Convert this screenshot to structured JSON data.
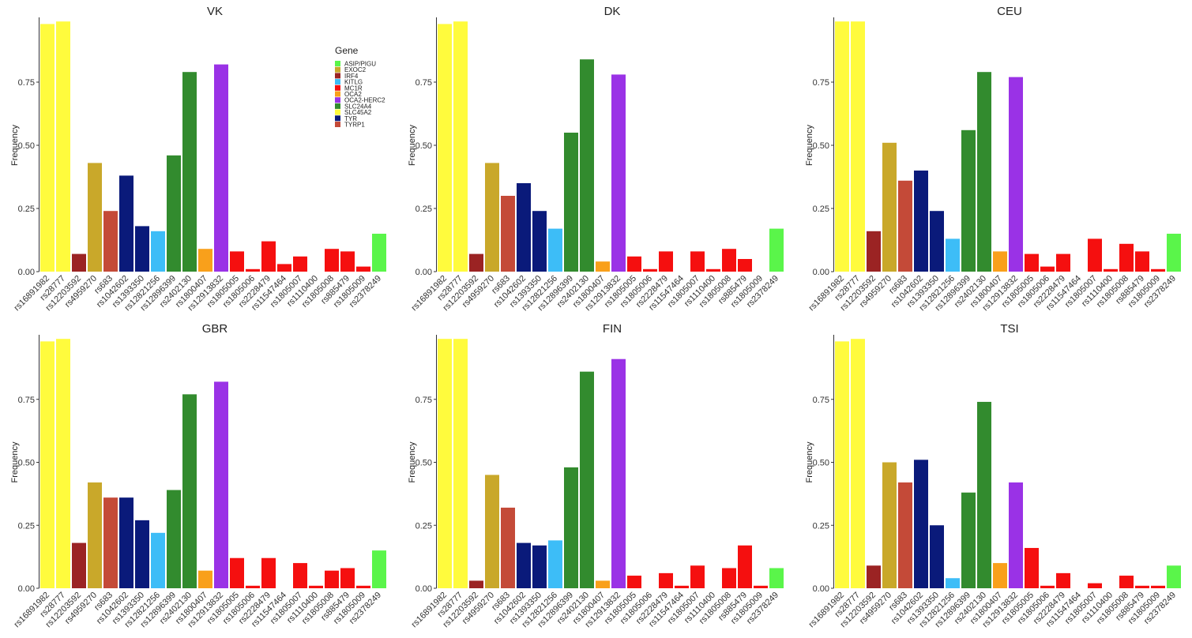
{
  "chart_data": [
    {
      "type": "bar",
      "title": "VK",
      "ylabel": "Frequency",
      "categories": [
        "rs16891982",
        "rs28777",
        "rs12203592",
        "rs4959270",
        "rs683",
        "rs1042602",
        "rs1393350",
        "rs12821256",
        "rs12896399",
        "rs2402130",
        "rs1800407",
        "rs12913832",
        "rs1805005",
        "rs1805006",
        "rs2228479",
        "rs11547464",
        "rs1805007",
        "rs1110400",
        "rs1805008",
        "rs885479",
        "rs1805009",
        "rs2378249"
      ],
      "values": [
        0.98,
        0.99,
        0.07,
        0.43,
        0.24,
        0.38,
        0.18,
        0.16,
        0.46,
        0.79,
        0.09,
        0.82,
        0.08,
        0.01,
        0.12,
        0.03,
        0.06,
        0,
        0.09,
        0.08,
        0.02,
        0.15
      ],
      "ylim": [
        0,
        1
      ],
      "yticks": [
        "0.00",
        "0.25",
        "0.50",
        "0.75"
      ]
    },
    {
      "type": "bar",
      "title": "DK",
      "ylabel": "Frequency",
      "categories": [
        "rs16891982",
        "rs28777",
        "rs12203592",
        "rs4959270",
        "rs683",
        "rs1042602",
        "rs1393350",
        "rs12821256",
        "rs12896399",
        "rs2402130",
        "rs1800407",
        "rs12913832",
        "rs1805005",
        "rs1805006",
        "rs2228479",
        "rs11547464",
        "rs1805007",
        "rs1110400",
        "rs1805008",
        "rs885479",
        "rs1805009",
        "rs2378249"
      ],
      "values": [
        0.98,
        0.99,
        0.07,
        0.43,
        0.3,
        0.35,
        0.24,
        0.17,
        0.55,
        0.84,
        0.04,
        0.78,
        0.06,
        0.01,
        0.08,
        0,
        0.08,
        0.01,
        0.09,
        0.05,
        0,
        0.17
      ],
      "ylim": [
        0,
        1
      ],
      "yticks": [
        "0.00",
        "0.25",
        "0.50",
        "0.75"
      ]
    },
    {
      "type": "bar",
      "title": "CEU",
      "ylabel": "Frequency",
      "categories": [
        "rs16891982",
        "rs28777",
        "rs12203592",
        "rs4959270",
        "rs683",
        "rs1042602",
        "rs1393350",
        "rs12821256",
        "rs12896399",
        "rs2402130",
        "rs1800407",
        "rs12913832",
        "rs1805005",
        "rs1805006",
        "rs2228479",
        "rs11547464",
        "rs1805007",
        "rs1110400",
        "rs1805008",
        "rs885479",
        "rs1805009",
        "rs2378249"
      ],
      "values": [
        0.99,
        0.99,
        0.16,
        0.51,
        0.36,
        0.4,
        0.24,
        0.13,
        0.56,
        0.79,
        0.08,
        0.77,
        0.07,
        0.02,
        0.07,
        0,
        0.13,
        0.01,
        0.11,
        0.08,
        0.01,
        0.15
      ],
      "ylim": [
        0,
        1
      ],
      "yticks": [
        "0.00",
        "0.25",
        "0.50",
        "0.75"
      ]
    },
    {
      "type": "bar",
      "title": "GBR",
      "ylabel": "Frequency",
      "categories": [
        "rs16891982",
        "rs28777",
        "rs12203592",
        "rs4959270",
        "rs683",
        "rs1042602",
        "rs1393350",
        "rs12821256",
        "rs12896399",
        "rs2402130",
        "rs1800407",
        "rs12913832",
        "rs1805005",
        "rs1805006",
        "rs2228479",
        "rs11547464",
        "rs1805007",
        "rs1110400",
        "rs1805008",
        "rs885479",
        "rs1805009",
        "rs2378249"
      ],
      "values": [
        0.98,
        0.99,
        0.18,
        0.42,
        0.36,
        0.36,
        0.27,
        0.22,
        0.39,
        0.77,
        0.07,
        0.82,
        0.12,
        0.01,
        0.12,
        0,
        0.1,
        0.01,
        0.07,
        0.08,
        0.01,
        0.15
      ],
      "ylim": [
        0,
        1
      ],
      "yticks": [
        "0.00",
        "0.25",
        "0.50",
        "0.75"
      ]
    },
    {
      "type": "bar",
      "title": "FIN",
      "ylabel": "Frequency",
      "categories": [
        "rs16891982",
        "rs28777",
        "rs12203592",
        "rs4959270",
        "rs683",
        "rs1042602",
        "rs1393350",
        "rs12821256",
        "rs12896399",
        "rs2402130",
        "rs1800407",
        "rs12913832",
        "rs1805005",
        "rs1805006",
        "rs2228479",
        "rs11547464",
        "rs1805007",
        "rs1110400",
        "rs1805008",
        "rs885479",
        "rs1805009",
        "rs2378249"
      ],
      "values": [
        0.99,
        0.99,
        0.03,
        0.45,
        0.32,
        0.18,
        0.17,
        0.19,
        0.48,
        0.86,
        0.03,
        0.91,
        0.05,
        0,
        0.06,
        0.01,
        0.09,
        0,
        0.08,
        0.17,
        0.01,
        0.08
      ],
      "ylim": [
        0,
        1
      ],
      "yticks": [
        "0.00",
        "0.25",
        "0.50",
        "0.75"
      ]
    },
    {
      "type": "bar",
      "title": "TSI",
      "ylabel": "Frequency",
      "categories": [
        "rs16891982",
        "rs28777",
        "rs12203592",
        "rs4959270",
        "rs683",
        "rs1042602",
        "rs1393350",
        "rs12821256",
        "rs12896399",
        "rs2402130",
        "rs1800407",
        "rs12913832",
        "rs1805005",
        "rs1805006",
        "rs2228479",
        "rs11547464",
        "rs1805007",
        "rs1110400",
        "rs1805008",
        "rs885479",
        "rs1805009",
        "rs2378249"
      ],
      "values": [
        0.98,
        0.99,
        0.09,
        0.5,
        0.42,
        0.51,
        0.25,
        0.04,
        0.38,
        0.74,
        0.1,
        0.42,
        0.16,
        0.01,
        0.06,
        0,
        0.02,
        0,
        0.05,
        0.01,
        0.01,
        0.09
      ],
      "ylim": [
        0,
        1
      ],
      "yticks": [
        "0.00",
        "0.25",
        "0.50",
        "0.75"
      ]
    }
  ],
  "legend": {
    "title": "Gene",
    "placement": "top-right of first panel",
    "items": [
      {
        "name": "ASIP/PIGU",
        "color": "#5AF54A"
      },
      {
        "name": "EXOC2",
        "color": "#C9A82A"
      },
      {
        "name": "IRF4",
        "color": "#9B2323"
      },
      {
        "name": "KITLG",
        "color": "#3DBDF7"
      },
      {
        "name": "MC1R",
        "color": "#F50F0F"
      },
      {
        "name": "OCA2",
        "color": "#F9A01B"
      },
      {
        "name": "OCA2-HERC2",
        "color": "#9A32E6"
      },
      {
        "name": "SLC24A4",
        "color": "#328B2E"
      },
      {
        "name": "SLC45A2",
        "color": "#FFFB3D"
      },
      {
        "name": "TYR",
        "color": "#0A1A7A"
      },
      {
        "name": "TYRP1",
        "color": "#C44A38"
      }
    ]
  },
  "snp_gene": [
    "SLC45A2",
    "SLC45A2",
    "IRF4",
    "EXOC2",
    "TYRP1",
    "TYR",
    "TYR",
    "KITLG",
    "SLC24A4",
    "SLC24A4",
    "OCA2",
    "OCA2-HERC2",
    "MC1R",
    "MC1R",
    "MC1R",
    "MC1R",
    "MC1R",
    "MC1R",
    "MC1R",
    "MC1R",
    "MC1R",
    "ASIP/PIGU"
  ]
}
